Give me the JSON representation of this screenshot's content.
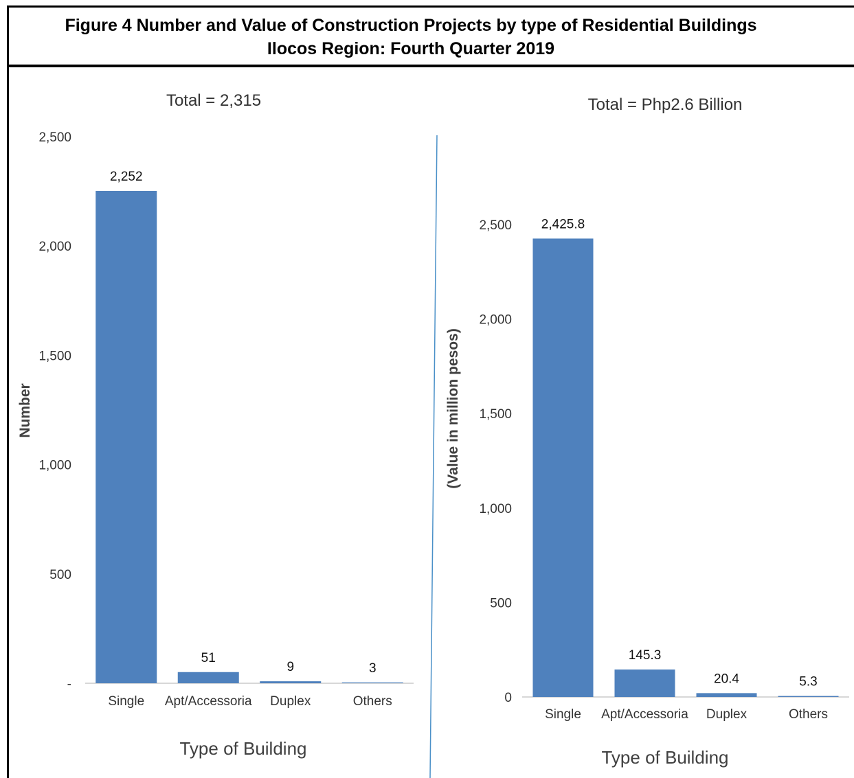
{
  "figure": {
    "title_line1": "Figure 4 Number and Value of Construction Projects by type of Residential Buildings",
    "title_line2": "Ilocos Region: Fourth Quarter 2019"
  },
  "colors": {
    "bar": "#4f81bd",
    "axis": "#bfbfbf",
    "divider": "#4a90c8"
  },
  "chart_data": [
    {
      "type": "bar",
      "title": "Total = 2,315",
      "xlabel": "Type of Building",
      "ylabel": "Number",
      "categories": [
        "Single",
        "Apt/Accessoria",
        "Duplex",
        "Others"
      ],
      "values": [
        2252,
        51,
        9,
        3
      ],
      "value_labels": [
        "2,252",
        "51",
        "9",
        "3"
      ],
      "ylim": [
        0,
        2500
      ],
      "yticks": [
        0,
        500,
        1000,
        1500,
        2000,
        2500
      ],
      "ytick_labels": [
        "-",
        "500",
        "1,000",
        "1,500",
        "2,000",
        "2,500"
      ],
      "grid": false,
      "legend": "none"
    },
    {
      "type": "bar",
      "title": "Total = Php2.6 Billion",
      "xlabel": "Type of Building",
      "ylabel": "(Value  in million pesos)",
      "categories": [
        "Single",
        "Apt/Accessoria",
        "Duplex",
        "Others"
      ],
      "values": [
        2425.8,
        145.3,
        20.4,
        5.3
      ],
      "value_labels": [
        "2,425.8",
        "145.3",
        "20.4",
        "5.3"
      ],
      "ylim": [
        0,
        2500
      ],
      "yticks": [
        0,
        500,
        1000,
        1500,
        2000,
        2500
      ],
      "ytick_labels": [
        "0",
        "500",
        "1,000",
        "1,500",
        "2,000",
        "2,500"
      ],
      "grid": false,
      "legend": "none"
    }
  ]
}
